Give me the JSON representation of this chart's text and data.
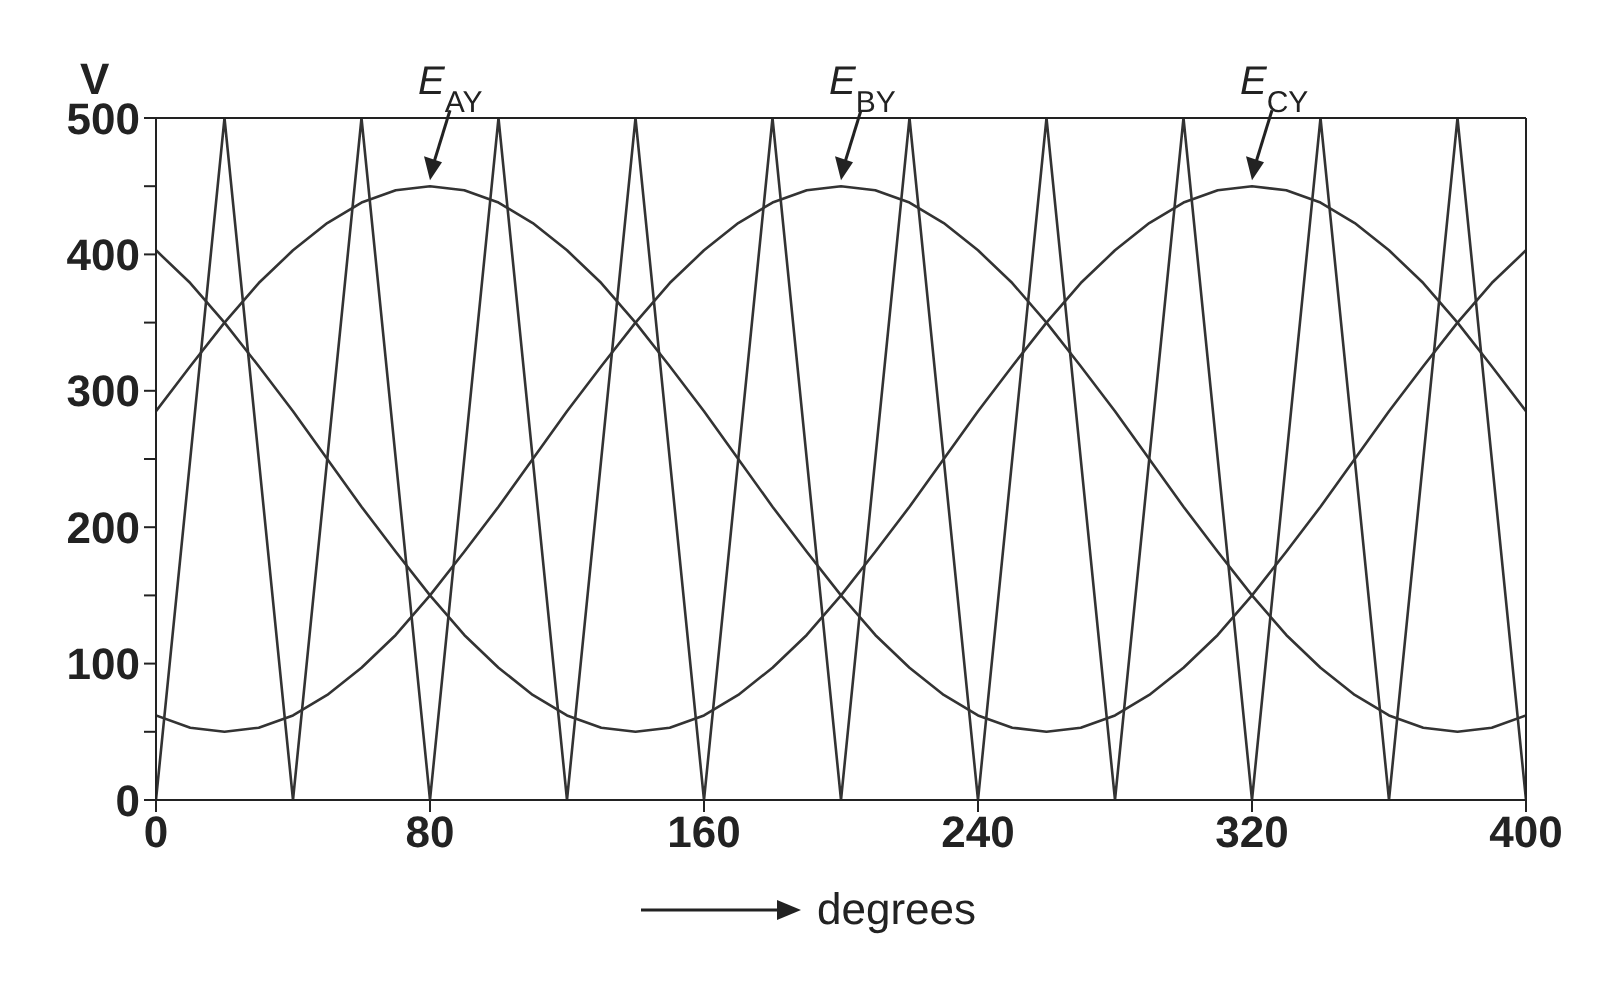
{
  "chart_data": {
    "type": "line",
    "xlabel": "degrees",
    "ylabel": "V",
    "xlim": [
      0,
      400
    ],
    "xticks": [
      0,
      80,
      160,
      240,
      320,
      400
    ],
    "ylim": [
      0,
      500
    ],
    "yticks": [
      0,
      {
        "value": 50,
        "label": null
      },
      100,
      {
        "value": 150,
        "label": null
      },
      200,
      {
        "value": 250,
        "label": null
      },
      300,
      {
        "value": 350,
        "label": null
      },
      400,
      {
        "value": 450,
        "label": null
      },
      500
    ],
    "grid": false,
    "legend": false,
    "marker": "none",
    "line_style": "solid",
    "series": [
      {
        "color": "#333333",
        "x": [
          0,
          10,
          20,
          30,
          40,
          50,
          60,
          70,
          80,
          90,
          100,
          110,
          120,
          130,
          140,
          150,
          160,
          170,
          180,
          190,
          200,
          210,
          220,
          230,
          240,
          250,
          260,
          270,
          280,
          290,
          300,
          310,
          320,
          330,
          340,
          350,
          360,
          370,
          380,
          390,
          400
        ],
        "values": [
          285,
          318,
          350,
          379,
          403,
          423,
          438,
          447,
          450,
          447,
          438,
          423,
          403,
          379,
          350,
          318,
          285,
          250,
          215,
          182,
          150,
          121,
          97,
          77,
          62,
          53,
          50,
          53,
          62,
          77,
          97,
          121,
          150,
          182,
          215,
          250,
          285,
          318,
          350,
          379,
          403
        ]
      },
      {
        "color": "#333333",
        "x": [
          0,
          10,
          20,
          30,
          40,
          50,
          60,
          70,
          80,
          90,
          100,
          110,
          120,
          130,
          140,
          150,
          160,
          170,
          180,
          190,
          200,
          210,
          220,
          230,
          240,
          250,
          260,
          270,
          280,
          290,
          300,
          310,
          320,
          330,
          340,
          350,
          360,
          370,
          380,
          390,
          400
        ],
        "values": [
          62,
          53,
          50,
          53,
          62,
          77,
          97,
          121,
          150,
          182,
          215,
          250,
          285,
          318,
          350,
          379,
          403,
          423,
          438,
          447,
          450,
          447,
          438,
          423,
          403,
          379,
          350,
          318,
          285,
          250,
          215,
          182,
          150,
          121,
          97,
          77,
          62,
          53,
          50,
          53,
          62
        ]
      },
      {
        "color": "#333333",
        "x": [
          0,
          10,
          20,
          30,
          40,
          50,
          60,
          70,
          80,
          90,
          100,
          110,
          120,
          130,
          140,
          150,
          160,
          170,
          180,
          190,
          200,
          210,
          220,
          230,
          240,
          250,
          260,
          270,
          280,
          290,
          300,
          310,
          320,
          330,
          340,
          350,
          360,
          370,
          380,
          390,
          400
        ],
        "values": [
          403,
          379,
          350,
          318,
          285,
          250,
          215,
          182,
          150,
          121,
          97,
          77,
          62,
          53,
          50,
          53,
          62,
          77,
          97,
          121,
          150,
          182,
          215,
          250,
          285,
          318,
          350,
          379,
          403,
          423,
          438,
          447,
          450,
          447,
          438,
          423,
          403,
          379,
          350,
          318,
          285
        ]
      },
      {
        "color": "#333333",
        "x": [
          0,
          20,
          40,
          60,
          80,
          100,
          120,
          140,
          160,
          180,
          200,
          220,
          240,
          260,
          280,
          300,
          320,
          340,
          360,
          380,
          400
        ],
        "values": [
          0,
          500,
          0,
          500,
          0,
          500,
          0,
          500,
          0,
          500,
          0,
          500,
          0,
          500,
          0,
          500,
          0,
          500,
          0,
          500,
          0
        ]
      }
    ],
    "annotations": [
      {
        "text": "E$_{AY}$",
        "x": 80,
        "y": 450
      },
      {
        "text": "E$_{BY}$",
        "x": 200,
        "y": 450
      },
      {
        "text": "E$_{CY}$",
        "x": 320,
        "y": 450
      }
    ]
  }
}
